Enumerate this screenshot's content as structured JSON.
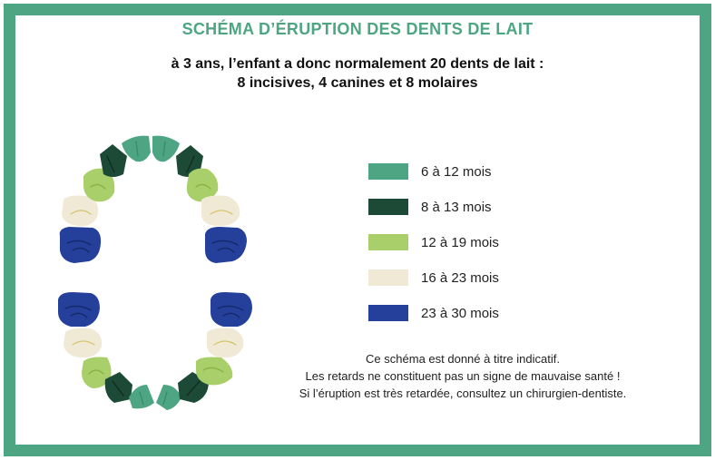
{
  "title": "SCHÉMA D’ÉRUPTION DES DENTS DE LAIT",
  "subtitle": {
    "line1": "à 3 ans, l’enfant a donc normalement 20 dents de lait :",
    "line2": "8 incisives, 4 canines et 8 molaires"
  },
  "colors": {
    "border": "#4ea584",
    "title": "#4ea584",
    "group_6_12": "#4ea584",
    "group_8_13": "#1d4a36",
    "group_12_19": "#a9cf6a",
    "group_16_23": "#efe9d6",
    "group_23_30": "#25409a"
  },
  "legend": [
    {
      "label": "6 à 12 mois",
      "color": "#4ea584"
    },
    {
      "label": "8 à 13 mois",
      "color": "#1d4a36"
    },
    {
      "label": "12 à 19 mois",
      "color": "#a9cf6a"
    },
    {
      "label": "16 à 23 mois",
      "color": "#efe9d6"
    },
    {
      "label": "23 à 30 mois",
      "color": "#25409a"
    }
  ],
  "note": {
    "line1": "Ce schéma est donné à titre indicatif.",
    "line2": "Les retards ne constituent pas un signe de mauvaise santé !",
    "line3": "Si l’éruption est très retardée, consultez un chirurgien-dentiste."
  },
  "teeth": {
    "upper": [
      "23 à 30 mois",
      "16 à 23 mois",
      "12 à 19 mois",
      "8 à 13 mois",
      "6 à 12 mois",
      "6 à 12 mois",
      "8 à 13 mois",
      "12 à 19 mois",
      "16 à 23 mois",
      "23 à 30 mois"
    ],
    "lower": [
      "23 à 30 mois",
      "16 à 23 mois",
      "12 à 19 mois",
      "8 à 13 mois",
      "6 à 12 mois",
      "6 à 12 mois",
      "8 à 13 mois",
      "12 à 19 mois",
      "16 à 23 mois",
      "23 à 30 mois"
    ]
  }
}
